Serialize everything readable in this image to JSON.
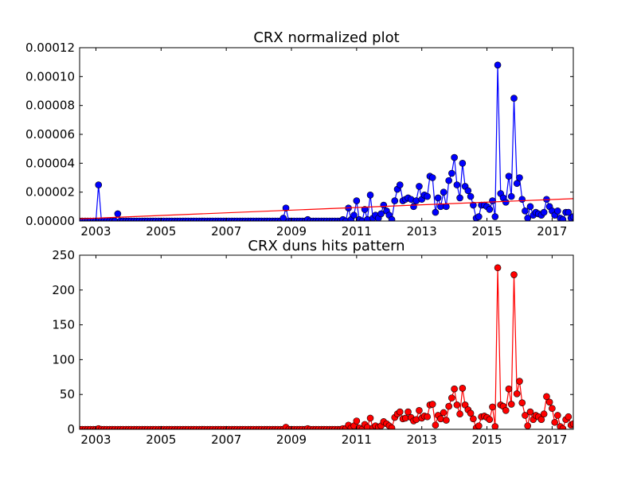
{
  "colors": {
    "background": "#ffffff",
    "axes": "#000000"
  },
  "chart_data": [
    {
      "type": "line",
      "title": "CRX normalized plot",
      "xlabel": "",
      "ylabel": "",
      "xlim": [
        2002.5,
        2017.65
      ],
      "ylim": [
        0,
        0.00012
      ],
      "x_ticks": [
        2003,
        2005,
        2007,
        2009,
        2011,
        2013,
        2015,
        2017
      ],
      "x_tick_labels": [
        "2003",
        "2005",
        "2007",
        "2009",
        "2011",
        "2013",
        "2015",
        "2017"
      ],
      "y_ticks": [
        0,
        2e-05,
        4e-05,
        6e-05,
        8e-05,
        0.0001,
        0.00012
      ],
      "y_tick_labels": [
        "0.00000",
        "0.00002",
        "0.00004",
        "0.00006",
        "0.00008",
        "0.00010",
        "0.00012"
      ],
      "grid": false,
      "legend": "none",
      "series": [
        {
          "style": "line-with-circle-markers",
          "color": "#0000ff",
          "x": [
            2002.5,
            2002.58,
            2002.67,
            2002.75,
            2002.83,
            2002.92,
            2003.0,
            2003.08,
            2003.17,
            2003.25,
            2003.33,
            2003.42,
            2003.5,
            2003.58,
            2003.67,
            2003.75,
            2003.83,
            2003.92,
            2004.0,
            2004.08,
            2004.17,
            2004.25,
            2004.33,
            2004.42,
            2004.5,
            2004.58,
            2004.67,
            2004.75,
            2004.83,
            2004.92,
            2005.0,
            2005.08,
            2005.17,
            2005.25,
            2005.33,
            2005.42,
            2005.5,
            2005.58,
            2005.67,
            2005.75,
            2005.83,
            2005.92,
            2006.0,
            2006.08,
            2006.17,
            2006.25,
            2006.33,
            2006.42,
            2006.5,
            2006.58,
            2006.67,
            2006.75,
            2006.83,
            2006.92,
            2007.0,
            2007.08,
            2007.17,
            2007.25,
            2007.33,
            2007.42,
            2007.5,
            2007.58,
            2007.67,
            2007.75,
            2007.83,
            2007.92,
            2008.0,
            2008.08,
            2008.17,
            2008.25,
            2008.33,
            2008.42,
            2008.5,
            2008.58,
            2008.67,
            2008.75,
            2008.83,
            2008.92,
            2009.0,
            2009.08,
            2009.17,
            2009.25,
            2009.33,
            2009.42,
            2009.5,
            2009.58,
            2009.67,
            2009.75,
            2009.83,
            2009.92,
            2010.0,
            2010.08,
            2010.17,
            2010.25,
            2010.33,
            2010.42,
            2010.5,
            2010.58,
            2010.67,
            2010.75,
            2010.83,
            2010.92,
            2011.0,
            2011.08,
            2011.17,
            2011.25,
            2011.33,
            2011.42,
            2011.5,
            2011.58,
            2011.67,
            2011.75,
            2011.83,
            2011.92,
            2012.0,
            2012.08,
            2012.17,
            2012.25,
            2012.33,
            2012.42,
            2012.5,
            2012.58,
            2012.67,
            2012.75,
            2012.83,
            2012.92,
            2013.0,
            2013.08,
            2013.17,
            2013.25,
            2013.33,
            2013.42,
            2013.5,
            2013.58,
            2013.67,
            2013.75,
            2013.83,
            2013.92,
            2014.0,
            2014.08,
            2014.17,
            2014.25,
            2014.33,
            2014.42,
            2014.5,
            2014.58,
            2014.67,
            2014.75,
            2014.83,
            2014.92,
            2015.0,
            2015.08,
            2015.17,
            2015.25,
            2015.33,
            2015.42,
            2015.5,
            2015.58,
            2015.67,
            2015.75,
            2015.83,
            2015.92,
            2016.0,
            2016.08,
            2016.17,
            2016.25,
            2016.33,
            2016.42,
            2016.5,
            2016.58,
            2016.67,
            2016.75,
            2016.83,
            2016.92,
            2017.0,
            2017.08,
            2017.17,
            2017.25,
            2017.33,
            2017.42,
            2017.5,
            2017.58,
            2017.65
          ],
          "y": [
            0,
            0,
            0,
            0,
            0,
            0,
            0,
            2.5e-05,
            0,
            0,
            0,
            0,
            0,
            0,
            5e-06,
            0,
            0,
            0,
            0,
            0,
            0,
            0,
            0,
            0,
            0,
            0,
            0,
            0,
            0,
            0,
            0,
            0,
            0,
            0,
            0,
            0,
            0,
            0,
            0,
            0,
            0,
            0,
            0,
            0,
            0,
            0,
            0,
            0,
            0,
            0,
            0,
            0,
            0,
            0,
            0,
            0,
            0,
            0,
            0,
            0,
            0,
            0,
            0,
            0,
            0,
            0,
            0,
            0,
            0,
            0,
            0,
            0,
            0,
            0,
            0,
            2e-06,
            9e-06,
            0,
            0,
            0,
            0,
            0,
            0,
            0,
            1e-06,
            0,
            0,
            0,
            0,
            0,
            0,
            0,
            0,
            0,
            0,
            0,
            0,
            1e-06,
            0,
            9e-06,
            1e-06,
            4e-06,
            1.4e-05,
            1e-06,
            0,
            8e-06,
            1e-06,
            1.8e-05,
            2e-06,
            4e-06,
            2e-06,
            5e-06,
            1.1e-05,
            7e-06,
            4e-06,
            1e-06,
            1.4e-05,
            2.2e-05,
            2.5e-05,
            1.4e-05,
            1.5e-05,
            1.6e-05,
            1.5e-05,
            1e-05,
            1.4e-05,
            2.4e-05,
            1.5e-05,
            1.8e-05,
            1.7e-05,
            3.1e-05,
            3e-05,
            6e-06,
            1.6e-05,
            1e-05,
            2e-05,
            1e-05,
            2.8e-05,
            3.3e-05,
            4.4e-05,
            2.5e-05,
            1.6e-05,
            4e-05,
            2.4e-05,
            2.1e-05,
            1.7e-05,
            1.1e-05,
            2e-06,
            3e-06,
            1.1e-05,
            1.1e-05,
            1e-05,
            8e-06,
            1.4e-05,
            3e-06,
            0.000108,
            1.9e-05,
            1.6e-05,
            1.3e-05,
            3.1e-05,
            1.7e-05,
            8.5e-05,
            2.6e-05,
            3e-05,
            1.5e-05,
            7e-06,
            2e-06,
            1e-05,
            4e-06,
            6e-06,
            5e-06,
            4e-06,
            6e-06,
            1.5e-05,
            1e-05,
            7e-06,
            4e-06,
            7e-06,
            2e-06,
            1e-06,
            6e-06,
            6e-06,
            2e-06,
            3e-06
          ]
        },
        {
          "style": "trend-line",
          "color": "#ff0000",
          "x": [
            2002.5,
            2017.65
          ],
          "y": [
            1.5e-06,
            1.55e-05
          ]
        }
      ]
    },
    {
      "type": "line",
      "title": "CRX duns hits pattern",
      "xlabel": "",
      "ylabel": "",
      "xlim": [
        2002.5,
        2017.65
      ],
      "ylim": [
        0,
        250
      ],
      "x_ticks": [
        2003,
        2005,
        2007,
        2009,
        2011,
        2013,
        2015,
        2017
      ],
      "x_tick_labels": [
        "2003",
        "2005",
        "2007",
        "2009",
        "2011",
        "2013",
        "2015",
        "2017"
      ],
      "y_ticks": [
        0,
        50,
        100,
        150,
        200,
        250
      ],
      "y_tick_labels": [
        "0",
        "50",
        "100",
        "150",
        "200",
        "250"
      ],
      "grid": false,
      "legend": "none",
      "series": [
        {
          "style": "line-with-circle-markers",
          "color": "#ff0000",
          "x": [
            2002.5,
            2002.58,
            2002.67,
            2002.75,
            2002.83,
            2002.92,
            2003.0,
            2003.08,
            2003.17,
            2003.25,
            2003.33,
            2003.42,
            2003.5,
            2003.58,
            2003.67,
            2003.75,
            2003.83,
            2003.92,
            2004.0,
            2004.08,
            2004.17,
            2004.25,
            2004.33,
            2004.42,
            2004.5,
            2004.58,
            2004.67,
            2004.75,
            2004.83,
            2004.92,
            2005.0,
            2005.08,
            2005.17,
            2005.25,
            2005.33,
            2005.42,
            2005.5,
            2005.58,
            2005.67,
            2005.75,
            2005.83,
            2005.92,
            2006.0,
            2006.08,
            2006.17,
            2006.25,
            2006.33,
            2006.42,
            2006.5,
            2006.58,
            2006.67,
            2006.75,
            2006.83,
            2006.92,
            2007.0,
            2007.08,
            2007.17,
            2007.25,
            2007.33,
            2007.42,
            2007.5,
            2007.58,
            2007.67,
            2007.75,
            2007.83,
            2007.92,
            2008.0,
            2008.08,
            2008.17,
            2008.25,
            2008.33,
            2008.42,
            2008.5,
            2008.58,
            2008.67,
            2008.75,
            2008.83,
            2008.92,
            2009.0,
            2009.08,
            2009.17,
            2009.25,
            2009.33,
            2009.42,
            2009.5,
            2009.58,
            2009.67,
            2009.75,
            2009.83,
            2009.92,
            2010.0,
            2010.08,
            2010.17,
            2010.25,
            2010.33,
            2010.42,
            2010.5,
            2010.58,
            2010.67,
            2010.75,
            2010.83,
            2010.92,
            2011.0,
            2011.08,
            2011.17,
            2011.25,
            2011.33,
            2011.42,
            2011.5,
            2011.58,
            2011.67,
            2011.75,
            2011.83,
            2011.92,
            2012.0,
            2012.08,
            2012.17,
            2012.25,
            2012.33,
            2012.42,
            2012.5,
            2012.58,
            2012.67,
            2012.75,
            2012.83,
            2012.92,
            2013.0,
            2013.08,
            2013.17,
            2013.25,
            2013.33,
            2013.42,
            2013.5,
            2013.58,
            2013.67,
            2013.75,
            2013.83,
            2013.92,
            2014.0,
            2014.08,
            2014.17,
            2014.25,
            2014.33,
            2014.42,
            2014.5,
            2014.58,
            2014.67,
            2014.75,
            2014.83,
            2014.92,
            2015.0,
            2015.08,
            2015.17,
            2015.25,
            2015.33,
            2015.42,
            2015.5,
            2015.58,
            2015.67,
            2015.75,
            2015.83,
            2015.92,
            2016.0,
            2016.08,
            2016.17,
            2016.25,
            2016.33,
            2016.42,
            2016.5,
            2016.58,
            2016.67,
            2016.75,
            2016.83,
            2016.92,
            2017.0,
            2017.08,
            2017.17,
            2017.25,
            2017.33,
            2017.42,
            2017.5,
            2017.58,
            2017.65
          ],
          "y": [
            0,
            0,
            0,
            0,
            0,
            0,
            0,
            1,
            0,
            0,
            0,
            0,
            0,
            0,
            0,
            0,
            0,
            0,
            0,
            0,
            0,
            0,
            0,
            0,
            0,
            0,
            0,
            0,
            0,
            0,
            0,
            0,
            0,
            0,
            0,
            0,
            0,
            0,
            0,
            0,
            0,
            0,
            0,
            0,
            0,
            0,
            0,
            0,
            0,
            0,
            0,
            0,
            0,
            0,
            0,
            0,
            0,
            0,
            0,
            0,
            0,
            0,
            0,
            0,
            0,
            0,
            0,
            0,
            0,
            0,
            0,
            0,
            0,
            0,
            0,
            0,
            3,
            0,
            0,
            0,
            0,
            0,
            0,
            0,
            1,
            0,
            0,
            0,
            0,
            0,
            0,
            0,
            0,
            0,
            0,
            0,
            0,
            1,
            1,
            6,
            2,
            5,
            12,
            2,
            0,
            7,
            3,
            16,
            2,
            5,
            3,
            5,
            11,
            8,
            5,
            2,
            17,
            22,
            25,
            15,
            16,
            25,
            17,
            12,
            14,
            27,
            16,
            19,
            18,
            35,
            36,
            6,
            20,
            15,
            24,
            13,
            33,
            45,
            58,
            35,
            22,
            59,
            35,
            28,
            23,
            15,
            2,
            5,
            18,
            19,
            17,
            14,
            32,
            4,
            232,
            35,
            33,
            27,
            58,
            36,
            222,
            51,
            69,
            38,
            20,
            5,
            25,
            14,
            20,
            18,
            14,
            22,
            47,
            39,
            30,
            10,
            20,
            4,
            1,
            14,
            18,
            6,
            8
          ]
        }
      ]
    }
  ]
}
